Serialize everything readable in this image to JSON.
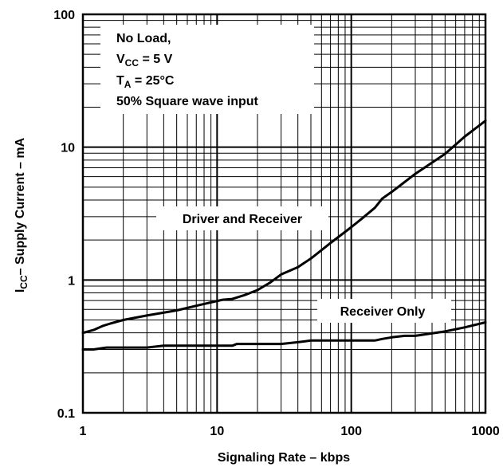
{
  "chart_data": {
    "type": "line",
    "x_scale": "log",
    "y_scale": "log",
    "xlim": [
      1,
      1000
    ],
    "ylim": [
      0.1,
      100
    ],
    "grid": true,
    "xlabel": "Signaling Rate  – kbps",
    "ylabel": {
      "prefix": "I",
      "subscript": "CC",
      "suffix": "– Supply Current – mA"
    },
    "x_ticks": [
      {
        "value": 1,
        "label": "1"
      },
      {
        "value": 10,
        "label": "10"
      },
      {
        "value": 100,
        "label": "100"
      },
      {
        "value": 1000,
        "label": "1000"
      }
    ],
    "y_ticks": [
      {
        "value": 0.1,
        "label": "0.1"
      },
      {
        "value": 1,
        "label": "1"
      },
      {
        "value": 10,
        "label": "10"
      },
      {
        "value": 100,
        "label": "100"
      }
    ],
    "conditions": {
      "load": "No Load,",
      "vcc": {
        "prefix": "V",
        "subscript": "CC",
        "suffix": " = 5 V"
      },
      "ta": {
        "prefix": "T",
        "subscript": "A",
        "suffix": " = 25°C"
      },
      "input": "50% Square wave input"
    },
    "series": [
      {
        "name": "Driver and Receiver",
        "x": [
          1,
          1.2,
          1.4,
          1.6,
          2,
          3,
          5,
          8,
          11,
          13,
          16,
          20,
          25,
          30,
          40,
          50,
          70,
          100,
          120,
          150,
          170,
          200,
          300,
          500,
          700,
          1000
        ],
        "y": [
          0.4,
          0.42,
          0.45,
          0.47,
          0.5,
          0.54,
          0.59,
          0.66,
          0.71,
          0.72,
          0.77,
          0.84,
          0.96,
          1.1,
          1.25,
          1.45,
          1.9,
          2.5,
          2.9,
          3.5,
          4.1,
          4.6,
          6.3,
          8.9,
          12,
          15.8
        ],
        "color": "#000000"
      },
      {
        "name": "Receiver Only",
        "x": [
          1,
          1.2,
          1.5,
          2,
          3,
          4,
          5,
          7,
          10,
          13,
          14,
          20,
          30,
          40,
          50,
          100,
          150,
          170,
          200,
          250,
          300,
          500,
          700,
          1000
        ],
        "y": [
          0.3,
          0.3,
          0.31,
          0.31,
          0.31,
          0.32,
          0.32,
          0.32,
          0.32,
          0.32,
          0.33,
          0.33,
          0.33,
          0.34,
          0.35,
          0.35,
          0.35,
          0.36,
          0.37,
          0.38,
          0.38,
          0.41,
          0.44,
          0.48
        ],
        "color": "#000000"
      }
    ]
  }
}
